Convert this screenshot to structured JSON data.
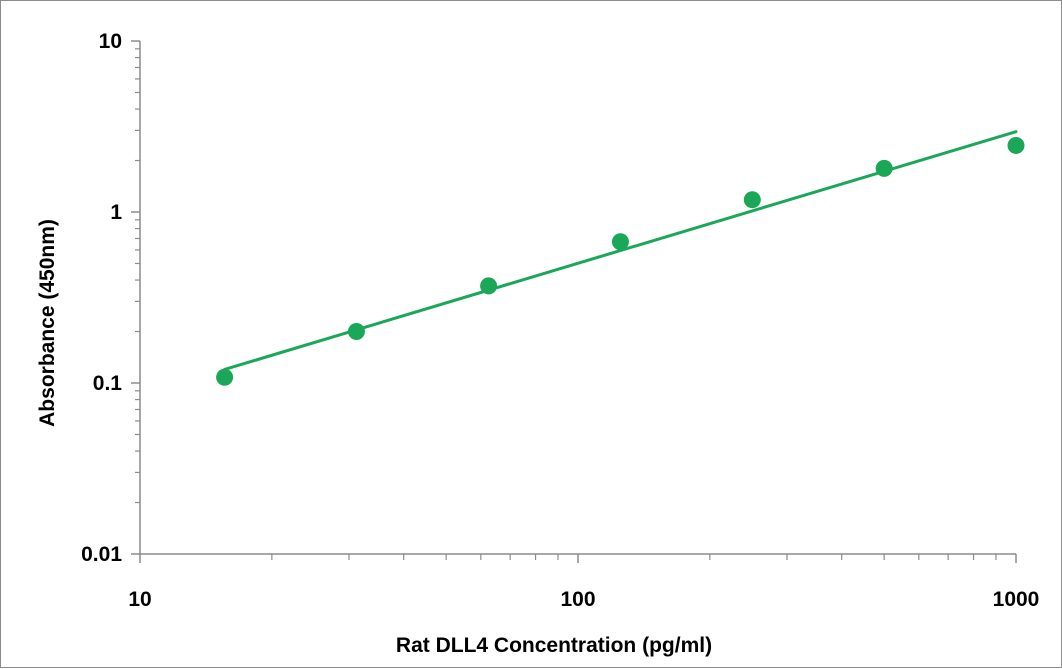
{
  "chart_data": {
    "type": "scatter",
    "xlabel": "Rat DLL4 Concentration (pg/ml)",
    "ylabel": "Absorbance (450nm)",
    "x_scale": "log",
    "y_scale": "log",
    "xlim": [
      10,
      1000
    ],
    "ylim": [
      0.01,
      10
    ],
    "x_tick_labels": [
      "10",
      "100",
      "1000"
    ],
    "y_tick_labels": [
      "10",
      "1",
      "0.1",
      "0.01"
    ],
    "grid": false,
    "legend": "none",
    "series": [
      {
        "x": [
          15.6,
          31.2,
          62.5,
          125,
          250,
          500,
          1000
        ],
        "y": [
          0.108,
          0.2,
          0.37,
          0.67,
          1.18,
          1.8,
          2.45
        ],
        "color": "#1aa757"
      }
    ],
    "trendline": {
      "type": "power",
      "x_range": [
        15.6,
        1000
      ],
      "y_range": [
        0.12,
        2.95
      ],
      "color": "#1aa757"
    }
  }
}
